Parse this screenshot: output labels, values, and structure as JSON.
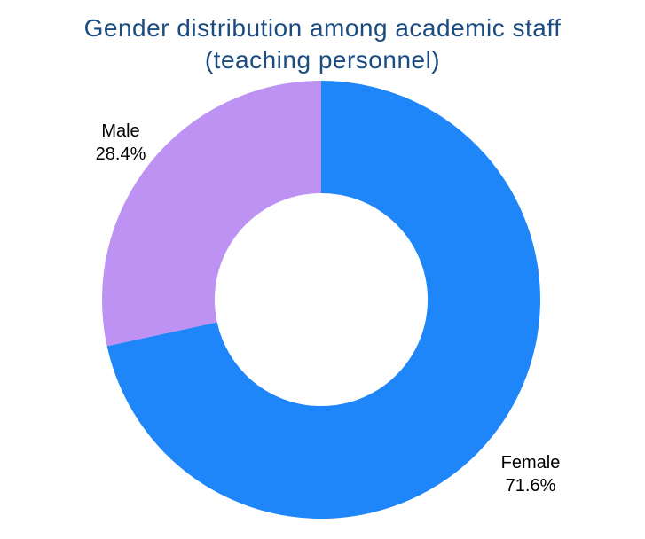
{
  "title": {
    "line1": "Gender distribution among academic staff",
    "line2": "(teaching personnel)",
    "color": "#1b4b7f"
  },
  "chart_data": {
    "type": "pie",
    "subtype": "donut",
    "title": "Gender distribution among academic staff (teaching personnel)",
    "slices": [
      {
        "label": "Female",
        "value": 71.6,
        "percent_label": "71.6%",
        "color": "#1e86f8"
      },
      {
        "label": "Male",
        "value": 28.4,
        "percent_label": "28.4%",
        "color": "#bd92f2"
      }
    ],
    "start_angle_deg": 0,
    "direction": "clockwise",
    "inner_radius_ratio": 0.486,
    "labels_position": "outside",
    "labels_color": "#000000",
    "legend": "none",
    "background": "#ffffff"
  }
}
